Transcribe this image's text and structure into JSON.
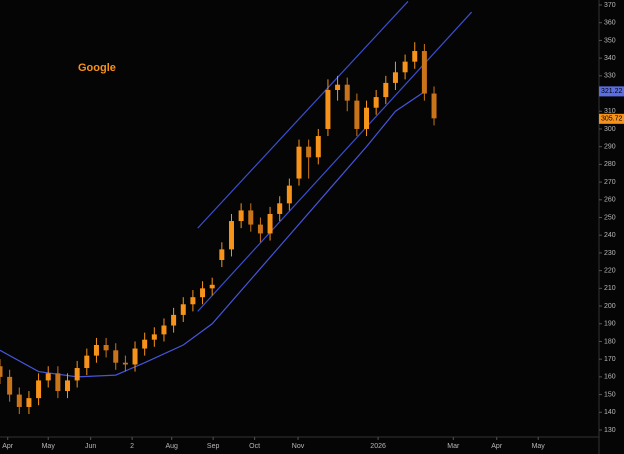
{
  "chart_data": {
    "type": "candlestick",
    "title": "Google",
    "color": "#f7931a",
    "x": [
      0,
      1,
      2,
      3,
      4,
      5,
      6,
      7,
      8,
      9,
      10,
      11,
      12,
      13,
      14,
      15,
      16,
      17,
      18,
      19,
      20,
      21,
      22,
      23,
      24,
      25,
      26,
      27,
      28,
      29,
      30,
      31,
      32,
      33,
      34,
      35,
      36,
      37,
      38,
      39,
      40,
      41,
      42,
      43,
      44,
      45
    ],
    "open": [
      166,
      160,
      150,
      143,
      148,
      158,
      162,
      152,
      158,
      165,
      172,
      178,
      175,
      168,
      167,
      176,
      181,
      184,
      189,
      195,
      201,
      205,
      210,
      226,
      232,
      248,
      254,
      246,
      241,
      252,
      258,
      272,
      290,
      284,
      300,
      322,
      325,
      316,
      300,
      312,
      318,
      326,
      332,
      338,
      344,
      320
    ],
    "high": [
      170,
      164,
      154,
      152,
      162,
      166,
      166,
      162,
      169,
      176,
      182,
      182,
      179,
      172,
      180,
      185,
      188,
      193,
      199,
      205,
      209,
      214,
      216,
      236,
      252,
      258,
      258,
      250,
      256,
      262,
      272,
      294,
      294,
      300,
      328,
      330,
      329,
      320,
      316,
      322,
      330,
      338,
      342,
      349,
      348,
      324
    ],
    "low": [
      156,
      146,
      139,
      139,
      144,
      154,
      148,
      148,
      154,
      161,
      168,
      171,
      164,
      163,
      163,
      172,
      177,
      180,
      185,
      191,
      197,
      201,
      206,
      222,
      228,
      244,
      242,
      236,
      237,
      248,
      254,
      268,
      272,
      280,
      296,
      316,
      310,
      296,
      296,
      308,
      314,
      322,
      328,
      334,
      316,
      302
    ],
    "close": [
      160,
      150,
      143,
      148,
      158,
      162,
      152,
      158,
      165,
      172,
      178,
      175,
      168,
      167,
      176,
      181,
      184,
      189,
      195,
      201,
      205,
      210,
      212,
      232,
      248,
      254,
      246,
      241,
      252,
      258,
      268,
      290,
      284,
      296,
      322,
      325,
      316,
      300,
      312,
      318,
      326,
      332,
      338,
      344,
      320,
      306
    ],
    "moving_average": {
      "color": "#4655d8",
      "x": [
        0,
        4,
        8,
        12,
        15,
        19,
        22,
        26,
        30,
        34,
        38,
        41,
        44
      ],
      "values": [
        175,
        163,
        160,
        161,
        168,
        178,
        190,
        215,
        240,
        265,
        290,
        310,
        321
      ]
    },
    "channels": [
      {
        "color": "#3a4fd0",
        "x": [
          20.5,
          42.3
        ],
        "values": [
          244,
          372
        ]
      },
      {
        "color": "#3a4fd0",
        "x": [
          20.5,
          48.9
        ],
        "values": [
          197,
          366
        ]
      }
    ],
    "price_labels": [
      {
        "value": 321.22,
        "color": "#5b6ee1"
      },
      {
        "value": 305.72,
        "color": "#f7931a"
      }
    ],
    "xlim": [
      0,
      62
    ],
    "ylim": [
      130,
      370
    ],
    "yticks": [
      130,
      140,
      150,
      160,
      170,
      180,
      190,
      200,
      210,
      220,
      230,
      240,
      250,
      260,
      270,
      280,
      290,
      300,
      310,
      320,
      330,
      340,
      350,
      360,
      370
    ],
    "xticks": [
      {
        "value": 0.8,
        "label": "Apr"
      },
      {
        "value": 5,
        "label": "May"
      },
      {
        "value": 9.4,
        "label": "Jun"
      },
      {
        "value": 13.7,
        "label": "2"
      },
      {
        "value": 17.8,
        "label": "Aug"
      },
      {
        "value": 22.1,
        "label": "Sep"
      },
      {
        "value": 26.4,
        "label": "Oct"
      },
      {
        "value": 30.9,
        "label": "Nov"
      },
      {
        "value": 39.2,
        "label": "2026"
      },
      {
        "value": 47,
        "label": "Mar"
      },
      {
        "value": 51.5,
        "label": "Apr"
      },
      {
        "value": 55.8,
        "label": "May"
      }
    ]
  }
}
